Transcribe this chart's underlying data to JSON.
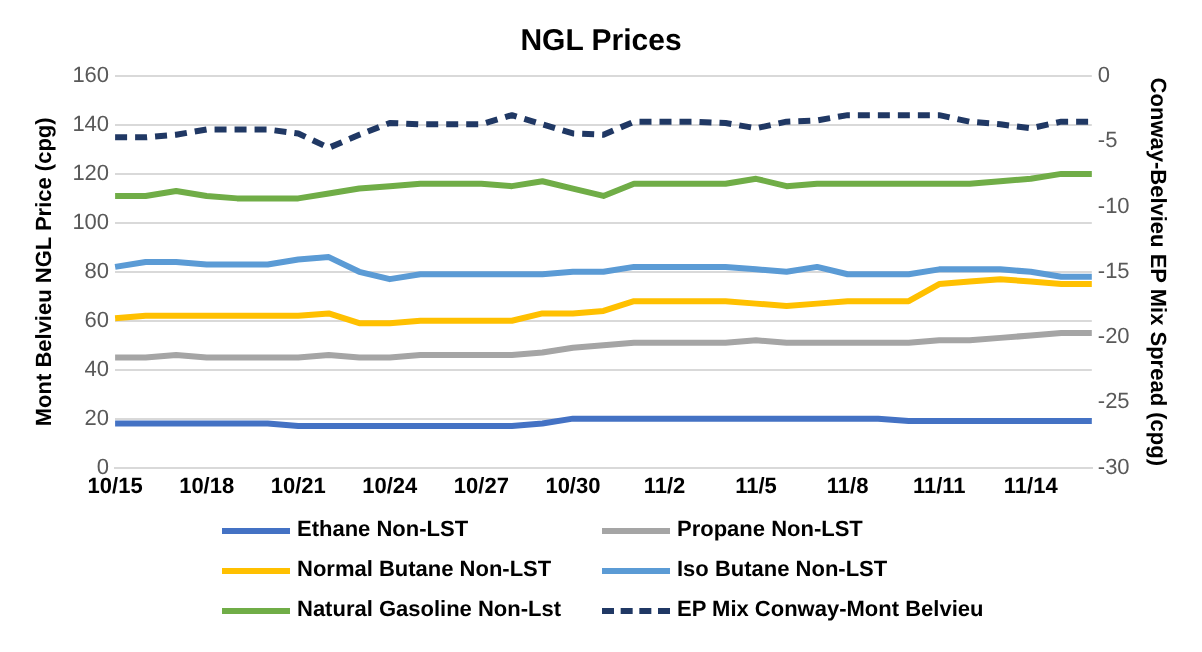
{
  "chart_data": {
    "type": "line",
    "title": "NGL Prices",
    "ylabel": "Mont Belvieu NGL Price (cpg)",
    "y2label": "Conway-Belvieu EP Mix Spread (cpg)",
    "categories": [
      "10/15",
      null,
      null,
      "10/18",
      null,
      null,
      "10/21",
      null,
      null,
      "10/24",
      null,
      null,
      "10/27",
      null,
      null,
      "10/30",
      null,
      null,
      "11/2",
      null,
      null,
      "11/5",
      null,
      null,
      "11/8",
      null,
      null,
      "11/11",
      null,
      null,
      "11/14",
      null,
      null
    ],
    "ylim": [
      0,
      160
    ],
    "yticks": [
      0,
      20,
      40,
      60,
      80,
      100,
      120,
      140,
      160
    ],
    "y2lim": [
      -30,
      0
    ],
    "y2ticks": [
      -30,
      -25,
      -20,
      -15,
      -10,
      -5,
      0
    ],
    "grid": "y",
    "legend": "bottom",
    "marker": "none",
    "line_style": "solid",
    "series": [
      {
        "name": "Ethane Non-LST",
        "color": "#4472c4",
        "values": [
          18,
          18,
          18,
          18,
          18,
          18,
          17,
          17,
          17,
          17,
          17,
          17,
          17,
          17,
          18,
          20,
          20,
          20,
          20,
          20,
          20,
          20,
          20,
          20,
          20,
          20,
          19,
          19,
          19,
          19,
          19,
          19,
          19
        ]
      },
      {
        "name": "Propane Non-LST",
        "color": "#a5a5a5",
        "values": [
          45,
          45,
          46,
          45,
          45,
          45,
          45,
          46,
          45,
          45,
          46,
          46,
          46,
          46,
          47,
          49,
          50,
          51,
          51,
          51,
          51,
          52,
          51,
          51,
          51,
          51,
          51,
          52,
          52,
          53,
          54,
          55,
          55
        ]
      },
      {
        "name": "Normal Butane Non-LST",
        "color": "#ffc000",
        "values": [
          61,
          62,
          62,
          62,
          62,
          62,
          62,
          63,
          59,
          59,
          60,
          60,
          60,
          60,
          63,
          63,
          64,
          68,
          68,
          68,
          68,
          67,
          66,
          67,
          68,
          68,
          68,
          75,
          76,
          77,
          76,
          75,
          75
        ]
      },
      {
        "name": "Iso Butane Non-LST",
        "color": "#5b9bd5",
        "values": [
          82,
          84,
          84,
          83,
          83,
          83,
          85,
          86,
          80,
          77,
          79,
          79,
          79,
          79,
          79,
          80,
          80,
          82,
          82,
          82,
          82,
          81,
          80,
          82,
          79,
          79,
          79,
          81,
          81,
          81,
          80,
          78,
          78
        ]
      },
      {
        "name": "Natural Gasoline Non-Lst",
        "color": "#70ad47",
        "values": [
          111,
          111,
          113,
          111,
          110,
          110,
          110,
          112,
          114,
          115,
          116,
          116,
          116,
          115,
          117,
          114,
          111,
          116,
          116,
          116,
          116,
          118,
          115,
          116,
          116,
          116,
          116,
          116,
          116,
          117,
          118,
          120,
          120
        ]
      },
      {
        "name": "EP Mix Conway-Mont Belvieu",
        "color": "#203864",
        "axis": "y2",
        "line_style": "dashed",
        "values": [
          -4.7,
          -4.7,
          -4.5,
          -4.1,
          -4.1,
          -4.1,
          -4.4,
          -5.5,
          -4.5,
          -3.6,
          -3.7,
          -3.7,
          -3.7,
          -3.0,
          -3.7,
          -4.4,
          -4.5,
          -3.5,
          -3.5,
          -3.5,
          -3.6,
          -4.0,
          -3.5,
          -3.4,
          -3.0,
          -3.0,
          -3.0,
          -3.0,
          -3.5,
          -3.7,
          -4.0,
          -3.5,
          -3.5
        ]
      }
    ]
  }
}
